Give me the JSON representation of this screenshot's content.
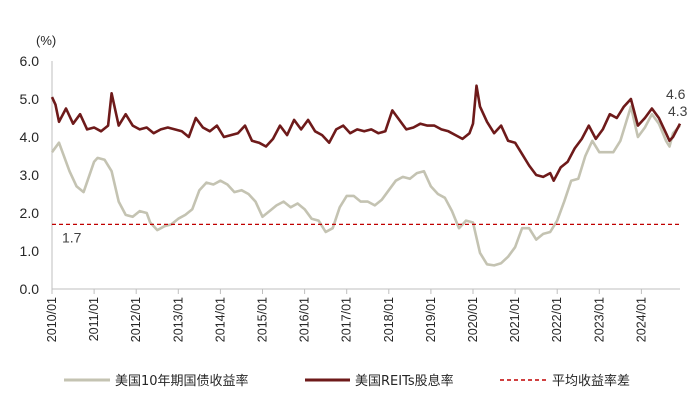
{
  "chart_data": {
    "type": "line",
    "ylabel": "(%)",
    "ylim": [
      0,
      6
    ],
    "y_ticks": [
      "0.0",
      "1.0",
      "2.0",
      "3.0",
      "4.0",
      "5.0",
      "6.0"
    ],
    "x_range": [
      "2010-01",
      "2024-12"
    ],
    "x_ticks": [
      "2010/01",
      "2011/01",
      "2012/01",
      "2013/01",
      "2014/01",
      "2015/01",
      "2016/01",
      "2017/01",
      "2018/01",
      "2019/01",
      "2020/01",
      "2021/01",
      "2022/01",
      "2023/01",
      "2024/01"
    ],
    "legend_position": "bottom",
    "series": [
      {
        "name": "美国10年期国债收益率",
        "color": "#c4c3b2",
        "points": [
          [
            "2010-01",
            3.6
          ],
          [
            "2010-03",
            3.85
          ],
          [
            "2010-06",
            3.1
          ],
          [
            "2010-08",
            2.7
          ],
          [
            "2010-10",
            2.55
          ],
          [
            "2011-01",
            3.35
          ],
          [
            "2011-02",
            3.45
          ],
          [
            "2011-04",
            3.4
          ],
          [
            "2011-06",
            3.1
          ],
          [
            "2011-08",
            2.3
          ],
          [
            "2011-10",
            1.95
          ],
          [
            "2011-12",
            1.9
          ],
          [
            "2012-02",
            2.05
          ],
          [
            "2012-04",
            2.0
          ],
          [
            "2012-05",
            1.75
          ],
          [
            "2012-07",
            1.55
          ],
          [
            "2012-09",
            1.65
          ],
          [
            "2012-11",
            1.7
          ],
          [
            "2013-01",
            1.85
          ],
          [
            "2013-03",
            1.95
          ],
          [
            "2013-05",
            2.1
          ],
          [
            "2013-07",
            2.6
          ],
          [
            "2013-09",
            2.8
          ],
          [
            "2013-11",
            2.75
          ],
          [
            "2014-01",
            2.85
          ],
          [
            "2014-03",
            2.75
          ],
          [
            "2014-05",
            2.55
          ],
          [
            "2014-07",
            2.6
          ],
          [
            "2014-09",
            2.5
          ],
          [
            "2014-11",
            2.3
          ],
          [
            "2015-01",
            1.9
          ],
          [
            "2015-03",
            2.05
          ],
          [
            "2015-05",
            2.2
          ],
          [
            "2015-07",
            2.3
          ],
          [
            "2015-09",
            2.15
          ],
          [
            "2015-11",
            2.25
          ],
          [
            "2016-01",
            2.1
          ],
          [
            "2016-03",
            1.85
          ],
          [
            "2016-05",
            1.8
          ],
          [
            "2016-07",
            1.5
          ],
          [
            "2016-09",
            1.6
          ],
          [
            "2016-11",
            2.15
          ],
          [
            "2017-01",
            2.45
          ],
          [
            "2017-03",
            2.45
          ],
          [
            "2017-05",
            2.3
          ],
          [
            "2017-07",
            2.3
          ],
          [
            "2017-09",
            2.2
          ],
          [
            "2017-11",
            2.35
          ],
          [
            "2018-01",
            2.6
          ],
          [
            "2018-03",
            2.85
          ],
          [
            "2018-05",
            2.95
          ],
          [
            "2018-07",
            2.9
          ],
          [
            "2018-09",
            3.05
          ],
          [
            "2018-11",
            3.1
          ],
          [
            "2019-01",
            2.7
          ],
          [
            "2019-03",
            2.5
          ],
          [
            "2019-05",
            2.4
          ],
          [
            "2019-07",
            2.05
          ],
          [
            "2019-09",
            1.6
          ],
          [
            "2019-11",
            1.8
          ],
          [
            "2020-01",
            1.75
          ],
          [
            "2020-03",
            0.95
          ],
          [
            "2020-05",
            0.65
          ],
          [
            "2020-07",
            0.62
          ],
          [
            "2020-09",
            0.68
          ],
          [
            "2020-11",
            0.85
          ],
          [
            "2021-01",
            1.1
          ],
          [
            "2021-03",
            1.6
          ],
          [
            "2021-05",
            1.6
          ],
          [
            "2021-07",
            1.3
          ],
          [
            "2021-09",
            1.45
          ],
          [
            "2021-11",
            1.5
          ],
          [
            "2022-01",
            1.8
          ],
          [
            "2022-03",
            2.3
          ],
          [
            "2022-05",
            2.85
          ],
          [
            "2022-07",
            2.9
          ],
          [
            "2022-09",
            3.5
          ],
          [
            "2022-11",
            3.9
          ],
          [
            "2023-01",
            3.6
          ],
          [
            "2023-03",
            3.6
          ],
          [
            "2023-05",
            3.6
          ],
          [
            "2023-07",
            3.9
          ],
          [
            "2023-09",
            4.5
          ],
          [
            "2023-10",
            4.8
          ],
          [
            "2023-12",
            4.0
          ],
          [
            "2024-02",
            4.25
          ],
          [
            "2024-04",
            4.6
          ],
          [
            "2024-06",
            4.35
          ],
          [
            "2024-08",
            3.9
          ],
          [
            "2024-09",
            3.75
          ],
          [
            "2024-10",
            4.1
          ],
          [
            "2024-12",
            4.3
          ]
        ]
      },
      {
        "name": "美国REITs股息率",
        "color": "#6e1a1a",
        "points": [
          [
            "2010-01",
            5.05
          ],
          [
            "2010-02",
            4.85
          ],
          [
            "2010-03",
            4.4
          ],
          [
            "2010-05",
            4.75
          ],
          [
            "2010-07",
            4.35
          ],
          [
            "2010-09",
            4.6
          ],
          [
            "2010-11",
            4.2
          ],
          [
            "2011-01",
            4.25
          ],
          [
            "2011-03",
            4.15
          ],
          [
            "2011-05",
            4.3
          ],
          [
            "2011-06",
            5.15
          ],
          [
            "2011-08",
            4.3
          ],
          [
            "2011-10",
            4.6
          ],
          [
            "2011-12",
            4.3
          ],
          [
            "2012-02",
            4.2
          ],
          [
            "2012-04",
            4.25
          ],
          [
            "2012-06",
            4.1
          ],
          [
            "2012-08",
            4.2
          ],
          [
            "2012-10",
            4.25
          ],
          [
            "2012-12",
            4.2
          ],
          [
            "2013-02",
            4.15
          ],
          [
            "2013-04",
            4.0
          ],
          [
            "2013-06",
            4.5
          ],
          [
            "2013-08",
            4.25
          ],
          [
            "2013-10",
            4.15
          ],
          [
            "2013-12",
            4.3
          ],
          [
            "2014-02",
            4.0
          ],
          [
            "2014-04",
            4.05
          ],
          [
            "2014-06",
            4.1
          ],
          [
            "2014-08",
            4.3
          ],
          [
            "2014-10",
            3.9
          ],
          [
            "2014-12",
            3.85
          ],
          [
            "2015-02",
            3.75
          ],
          [
            "2015-04",
            3.95
          ],
          [
            "2015-06",
            4.3
          ],
          [
            "2015-08",
            4.05
          ],
          [
            "2015-10",
            4.45
          ],
          [
            "2015-12",
            4.2
          ],
          [
            "2016-02",
            4.45
          ],
          [
            "2016-04",
            4.15
          ],
          [
            "2016-06",
            4.05
          ],
          [
            "2016-08",
            3.85
          ],
          [
            "2016-10",
            4.2
          ],
          [
            "2016-12",
            4.3
          ],
          [
            "2017-02",
            4.1
          ],
          [
            "2017-04",
            4.2
          ],
          [
            "2017-06",
            4.15
          ],
          [
            "2017-08",
            4.2
          ],
          [
            "2017-10",
            4.1
          ],
          [
            "2017-12",
            4.15
          ],
          [
            "2018-02",
            4.7
          ],
          [
            "2018-04",
            4.45
          ],
          [
            "2018-06",
            4.2
          ],
          [
            "2018-08",
            4.25
          ],
          [
            "2018-10",
            4.35
          ],
          [
            "2018-12",
            4.3
          ],
          [
            "2019-02",
            4.3
          ],
          [
            "2019-04",
            4.2
          ],
          [
            "2019-06",
            4.15
          ],
          [
            "2019-08",
            4.05
          ],
          [
            "2019-10",
            3.95
          ],
          [
            "2019-12",
            4.1
          ],
          [
            "2020-01",
            4.35
          ],
          [
            "2020-02",
            5.35
          ],
          [
            "2020-03",
            4.8
          ],
          [
            "2020-05",
            4.4
          ],
          [
            "2020-07",
            4.1
          ],
          [
            "2020-09",
            4.3
          ],
          [
            "2020-11",
            3.9
          ],
          [
            "2021-01",
            3.85
          ],
          [
            "2021-03",
            3.55
          ],
          [
            "2021-05",
            3.25
          ],
          [
            "2021-07",
            3.0
          ],
          [
            "2021-09",
            2.95
          ],
          [
            "2021-11",
            3.05
          ],
          [
            "2021-12",
            2.85
          ],
          [
            "2022-02",
            3.2
          ],
          [
            "2022-04",
            3.35
          ],
          [
            "2022-06",
            3.7
          ],
          [
            "2022-08",
            3.95
          ],
          [
            "2022-10",
            4.3
          ],
          [
            "2022-12",
            3.95
          ],
          [
            "2023-02",
            4.2
          ],
          [
            "2023-04",
            4.6
          ],
          [
            "2023-06",
            4.5
          ],
          [
            "2023-08",
            4.8
          ],
          [
            "2023-10",
            5.0
          ],
          [
            "2023-12",
            4.3
          ],
          [
            "2024-02",
            4.5
          ],
          [
            "2024-04",
            4.75
          ],
          [
            "2024-06",
            4.5
          ],
          [
            "2024-08",
            4.1
          ],
          [
            "2024-09",
            3.9
          ],
          [
            "2024-10",
            4.0
          ],
          [
            "2024-12",
            4.35
          ]
        ]
      },
      {
        "name": "平均收益率差",
        "color": "#c00000",
        "style": "dashed",
        "constant": 1.7
      }
    ],
    "annotations": [
      {
        "text": "1.7",
        "value": 1.7
      },
      {
        "text": "4.6",
        "series": 0
      },
      {
        "text": "4.3",
        "series": 1
      }
    ]
  }
}
